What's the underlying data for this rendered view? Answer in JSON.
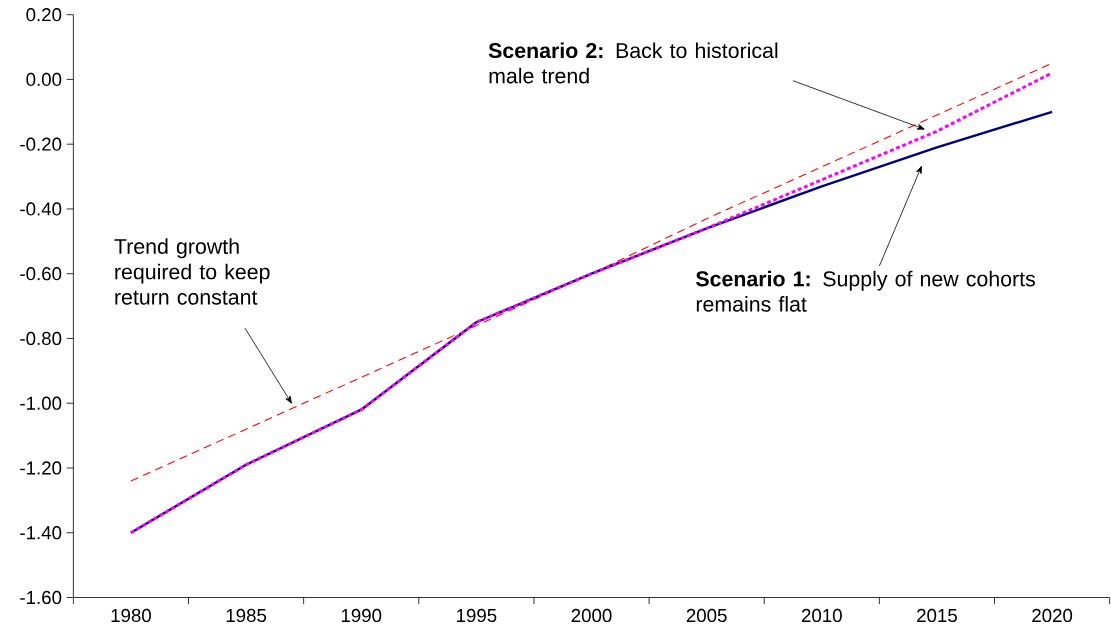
{
  "chart_data": {
    "type": "line",
    "categories": [
      "1980",
      "1985",
      "1990",
      "1995",
      "2000",
      "2005",
      "2010",
      "2015",
      "2020"
    ],
    "series": [
      {
        "color": "#ff0000",
        "line_style": "dashed",
        "values": [
          -1.24,
          -1.08,
          -0.92,
          -0.76,
          -0.6,
          -0.43,
          -0.27,
          -0.11,
          0.05
        ]
      },
      {
        "color": "#000080",
        "line_style": "solid",
        "values": [
          -1.4,
          -1.19,
          -1.02,
          -0.75,
          -0.6,
          -0.46,
          -0.33,
          -0.21,
          -0.1
        ]
      },
      {
        "color": "#ff00ff",
        "line_style": "dotted",
        "values": [
          -1.4,
          -1.19,
          -1.02,
          -0.75,
          -0.6,
          -0.46,
          -0.31,
          -0.16,
          0.02
        ]
      }
    ],
    "ylim": [
      -1.6,
      0.2
    ],
    "yticks": [
      {
        "value": -1.6,
        "label": "-1.60"
      },
      {
        "value": -1.4,
        "label": "-1.40"
      },
      {
        "value": -1.2,
        "label": "-1.20"
      },
      {
        "value": -1.0,
        "label": "-1.00"
      },
      {
        "value": -0.8,
        "label": "-0.80"
      },
      {
        "value": -0.6,
        "label": "-0.60"
      },
      {
        "value": -0.4,
        "label": "-0.40"
      },
      {
        "value": -0.2,
        "label": "-0.20"
      },
      {
        "value": 0.0,
        "label": "0.00"
      },
      {
        "value": 0.2,
        "label": "0.20"
      }
    ],
    "annotations": [
      "Trend growth required to keep return constant",
      "**Scenario 2:** Back to historical male trend",
      "**Scenario 1:** Supply of new cohorts remains flat"
    ],
    "marker": "none",
    "grid": false
  }
}
